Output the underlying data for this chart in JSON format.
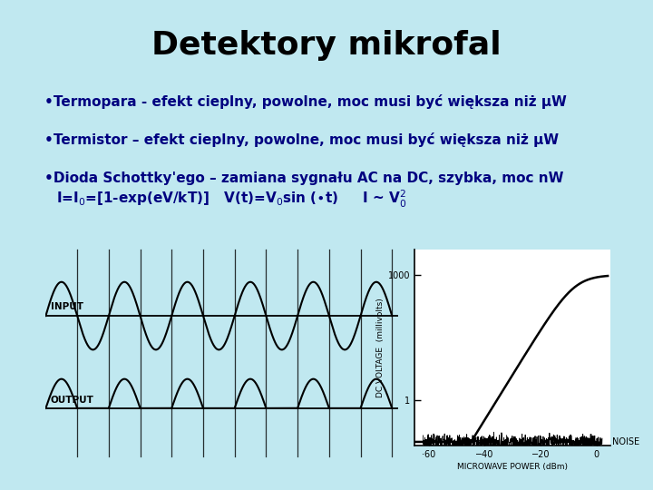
{
  "title": "Detektory mikrofal",
  "title_bg": "#FFFF00",
  "title_border": "#404080",
  "bg_color": "#C0E8F0",
  "bullet1": "•Termopara - efekt cieplny, powolne, moc musi być większa niż μW",
  "bullet2": "•Termistor – efekt cieplny, powolne, moc musi być większa niż μW",
  "bullet3": "•Dioda Schottky'ego – zamiana sygnału AC na DC, szybka, moc nW",
  "text_color": "#000080",
  "diagram_bg": "#E8E8E8",
  "font_size_bullets": 11,
  "font_size_formula": 11,
  "font_size_title": 26
}
